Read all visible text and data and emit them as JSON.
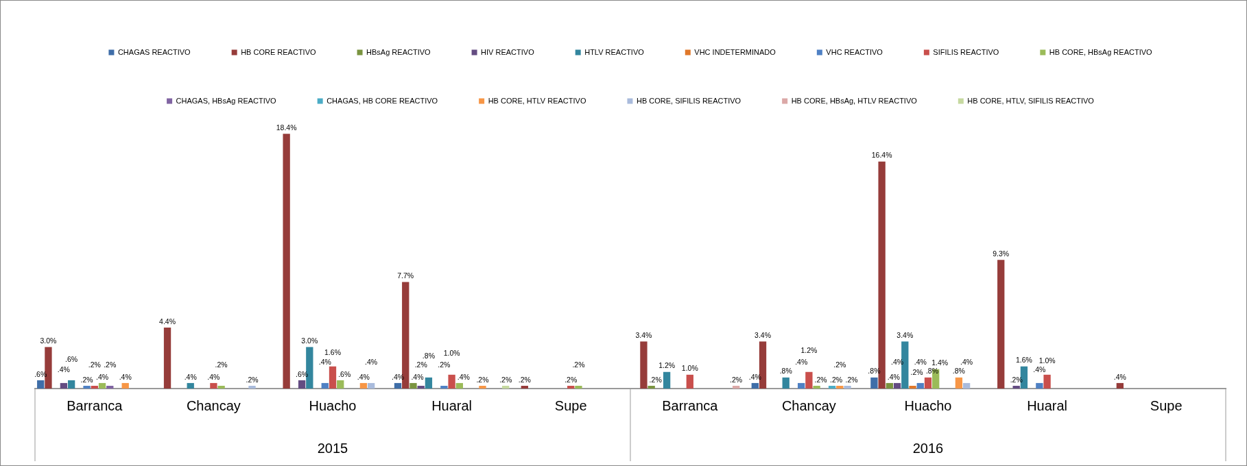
{
  "chart_data": {
    "type": "bar",
    "categories": [
      "Barranca",
      "Chancay",
      "Huacho",
      "Huaral",
      "Supe",
      "Barranca",
      "Chancay",
      "Huacho",
      "Huaral",
      "Supe"
    ],
    "annotations": [
      "2015",
      "2016"
    ],
    "legend": "top",
    "tick_labels": "x",
    "grid": false,
    "series": [
      {
        "name": "CHAGAS REACTIVO",
        "color": "#3f6ea8",
        "values": [
          0.6,
          null,
          null,
          0.4,
          null,
          null,
          0.4,
          0.8,
          null,
          null
        ],
        "value_labels": [
          ".6%",
          null,
          null,
          ".4%",
          null,
          null,
          ".4%",
          ".8%",
          null,
          null
        ]
      },
      {
        "name": "HB CORE REACTIVO",
        "color": "#963c3a",
        "values": [
          3.0,
          4.4,
          18.4,
          7.7,
          0.2,
          3.4,
          3.4,
          16.4,
          9.3,
          0.4
        ],
        "value_labels": [
          "3.0%",
          "4.4%",
          "18.4%",
          "7.7%",
          ".2%",
          "3.4%",
          "3.4%",
          "16.4%",
          "9.3%",
          ".4%"
        ]
      },
      {
        "name": "HBsAg REACTIVO",
        "color": "#7a9440",
        "values": [
          null,
          null,
          null,
          0.4,
          null,
          0.2,
          null,
          0.4,
          null,
          null
        ],
        "value_labels": [
          null,
          null,
          null,
          ".4%",
          null,
          ".2%",
          null,
          ".4%",
          null,
          null
        ]
      },
      {
        "name": "HIV REACTIVO",
        "color": "#644c82",
        "values": [
          0.4,
          null,
          0.6,
          0.2,
          null,
          null,
          null,
          0.4,
          0.2,
          null
        ],
        "value_labels": [
          ".4%",
          null,
          ".6%",
          ".2%",
          null,
          null,
          null,
          ".4%",
          ".2%",
          null
        ]
      },
      {
        "name": "HTLV REACTIVO",
        "color": "#33869e",
        "values": [
          0.6,
          0.4,
          3.0,
          0.8,
          null,
          1.2,
          0.8,
          3.4,
          1.6,
          null
        ],
        "value_labels": [
          ".6%",
          ".4%",
          "3.0%",
          ".8%",
          null,
          "1.2%",
          ".8%",
          "3.4%",
          "1.6%",
          null
        ]
      },
      {
        "name": "VHC INDETERMINADO",
        "color": "#e0782a",
        "values": [
          null,
          null,
          null,
          null,
          null,
          null,
          null,
          0.2,
          null,
          null
        ],
        "value_labels": [
          null,
          null,
          null,
          null,
          null,
          null,
          null,
          ".2%",
          null,
          null
        ]
      },
      {
        "name": "VHC REACTIVO",
        "color": "#4f81c4",
        "values": [
          0.2,
          null,
          0.4,
          0.2,
          null,
          null,
          0.4,
          0.4,
          0.4,
          null
        ],
        "value_labels": [
          ".2%",
          null,
          ".4%",
          ".2%",
          null,
          null,
          ".4%",
          ".4%",
          ".4%",
          null
        ]
      },
      {
        "name": "SIFILIS REACTIVO",
        "color": "#c94f4c",
        "values": [
          0.2,
          0.4,
          1.6,
          1.0,
          0.2,
          1.0,
          1.2,
          0.8,
          1.0,
          null
        ],
        "value_labels": [
          ".2%",
          ".4%",
          "1.6%",
          "1.0%",
          ".2%",
          "1.0%",
          "1.2%",
          ".8%",
          "1.0%",
          null
        ]
      },
      {
        "name": "HB CORE, HBsAg REACTIVO",
        "color": "#9bbb59",
        "values": [
          0.4,
          0.2,
          0.6,
          0.4,
          0.2,
          null,
          0.2,
          1.4,
          null,
          null
        ],
        "value_labels": [
          ".4%",
          ".2%",
          ".6%",
          ".4%",
          ".2%",
          null,
          ".2%",
          "1.4%",
          null,
          null
        ]
      },
      {
        "name": "CHAGAS, HBsAg REACTIVO",
        "color": "#8064a2",
        "values": [
          0.2,
          null,
          null,
          null,
          null,
          null,
          null,
          null,
          null,
          null
        ],
        "value_labels": [
          ".2%",
          null,
          null,
          null,
          null,
          null,
          null,
          null,
          null,
          null
        ]
      },
      {
        "name": "CHAGAS, HB CORE REACTIVO",
        "color": "#4bacc6",
        "values": [
          null,
          null,
          null,
          null,
          null,
          null,
          0.2,
          null,
          null,
          null
        ],
        "value_labels": [
          null,
          null,
          null,
          null,
          null,
          null,
          ".2%",
          null,
          null,
          null
        ]
      },
      {
        "name": "HB CORE, HTLV REACTIVO",
        "color": "#f79646",
        "values": [
          0.4,
          null,
          0.4,
          0.2,
          null,
          null,
          0.2,
          0.8,
          null,
          null
        ],
        "value_labels": [
          ".4%",
          null,
          ".4%",
          ".2%",
          null,
          null,
          ".2%",
          ".8%",
          null,
          null
        ]
      },
      {
        "name": "HB CORE, SIFILIS REACTIVO",
        "color": "#a9bbdc",
        "values": [
          null,
          0.2,
          0.4,
          null,
          null,
          null,
          0.2,
          0.4,
          null,
          null
        ],
        "value_labels": [
          null,
          ".2%",
          ".4%",
          null,
          null,
          null,
          ".2%",
          ".4%",
          null,
          null
        ]
      },
      {
        "name": "HB CORE, HBsAg, HTLV REACTIVO",
        "color": "#dba8a7",
        "values": [
          null,
          null,
          null,
          null,
          null,
          0.2,
          null,
          null,
          null,
          null
        ],
        "value_labels": [
          null,
          null,
          null,
          null,
          null,
          ".2%",
          null,
          null,
          null,
          null
        ]
      },
      {
        "name": "HB CORE, HTLV, SIFILIS REACTIVO",
        "color": "#c6d9a0",
        "values": [
          null,
          null,
          null,
          0.2,
          null,
          null,
          null,
          null,
          null,
          null
        ],
        "value_labels": [
          null,
          null,
          null,
          ".2%",
          null,
          null,
          null,
          null,
          null,
          null
        ]
      }
    ]
  }
}
